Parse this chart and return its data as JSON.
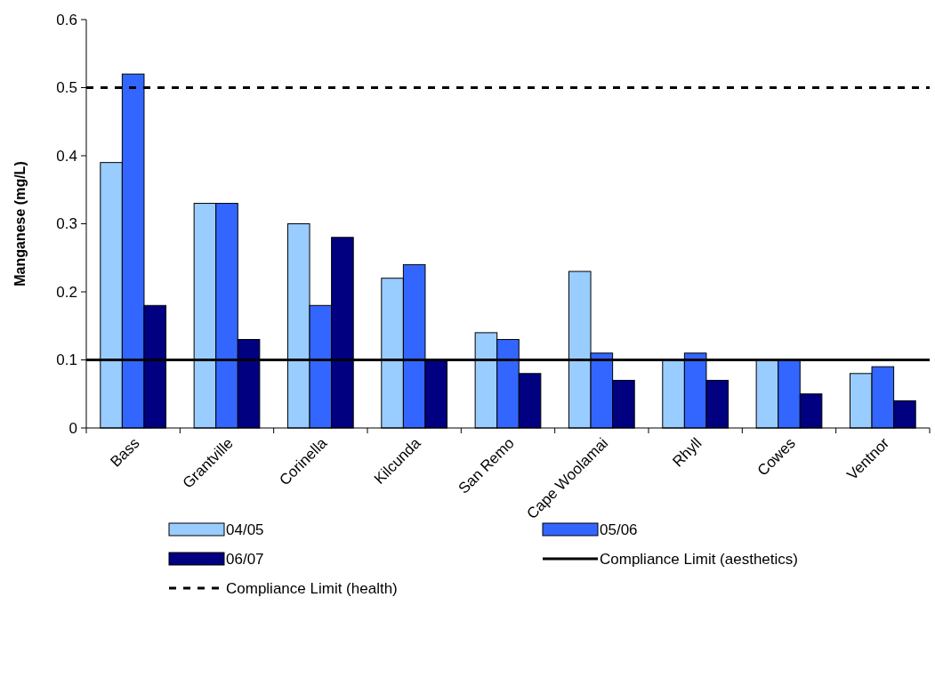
{
  "chart_data": {
    "type": "bar",
    "ylabel": "Manganese (mg/L)",
    "categories": [
      "Bass",
      "Grantville",
      "Corinella",
      "Kilcunda",
      "San Remo",
      "Cape Woolamai",
      "Rhyll",
      "Cowes",
      "Ventnor"
    ],
    "series": [
      {
        "name": "04/05",
        "color": "#99ccff",
        "values": [
          0.39,
          0.33,
          0.3,
          0.22,
          0.14,
          0.23,
          0.1,
          0.1,
          0.08
        ]
      },
      {
        "name": "05/06",
        "color": "#3366ff",
        "values": [
          0.52,
          0.33,
          0.18,
          0.24,
          0.13,
          0.11,
          0.11,
          0.1,
          0.09
        ]
      },
      {
        "name": "06/07",
        "color": "#000080",
        "values": [
          0.18,
          0.13,
          0.28,
          0.1,
          0.08,
          0.07,
          0.07,
          0.05,
          0.04
        ]
      }
    ],
    "ylim": [
      0,
      0.6
    ],
    "yticks": [
      0,
      0.1,
      0.2,
      0.3,
      0.4,
      0.5,
      0.6
    ],
    "ref_lines": [
      {
        "axis": "y",
        "value": 0.1,
        "label": "Compliance Limit (aesthetics)",
        "color": "#000000",
        "line_style": "solid"
      },
      {
        "axis": "y",
        "value": 0.5,
        "label": "Compliance Limit (health)",
        "color": "#000000",
        "line_style": "dashed"
      }
    ],
    "legend": "bottom",
    "grid": false
  }
}
